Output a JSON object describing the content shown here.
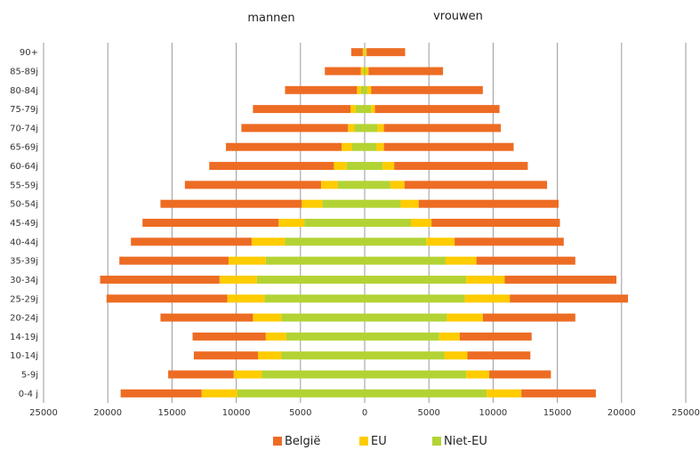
{
  "chart_data": {
    "type": "bar",
    "orientation": "horizontal",
    "stacking": "population-pyramid",
    "labels": {
      "left": "mannen",
      "right": "vrouwen"
    },
    "categories": [
      "90+",
      "85-89j",
      "80-84j",
      "75-79j",
      "70-74j",
      "65-69j",
      "60-64j",
      "55-59j",
      "50-54j",
      "45-49j",
      "40-44j",
      "35-39j",
      "30-34j",
      "25-29j",
      "20-24j",
      "14-19j",
      "10-14j",
      "5-9j",
      "0-4 j"
    ],
    "series": [
      {
        "name": "België",
        "color": "#ED6C24",
        "men": [
          900,
          2800,
          5600,
          7600,
          8300,
          9000,
          9700,
          10600,
          11000,
          10600,
          9400,
          8500,
          9300,
          9400,
          7200,
          5700,
          5000,
          5100,
          6300
        ],
        "women": [
          3000,
          5800,
          8700,
          9700,
          9100,
          10100,
          10400,
          11100,
          10900,
          10000,
          8500,
          7700,
          8700,
          9200,
          7200,
          5600,
          4900,
          4800,
          5800
        ]
      },
      {
        "name": "EU",
        "color": "#FFCC00",
        "men": [
          100,
          200,
          300,
          400,
          500,
          800,
          1000,
          1300,
          1600,
          2000,
          2600,
          2900,
          2900,
          2900,
          2200,
          1600,
          1800,
          2200,
          2800
        ],
        "women": [
          100,
          200,
          300,
          300,
          500,
          600,
          900,
          1100,
          1400,
          1600,
          2200,
          2400,
          3000,
          3500,
          2800,
          1600,
          1800,
          1800,
          2700
        ]
      },
      {
        "name": "Niet-EU",
        "color": "#B3D334",
        "men": [
          50,
          100,
          300,
          700,
          800,
          1000,
          1400,
          2100,
          3300,
          4700,
          6200,
          7700,
          8400,
          7800,
          6500,
          6100,
          6500,
          8000,
          9900
        ],
        "women": [
          50,
          100,
          200,
          500,
          1000,
          900,
          1400,
          2000,
          2800,
          3600,
          4800,
          6300,
          7900,
          7800,
          6400,
          5800,
          6200,
          7900,
          9500
        ]
      }
    ],
    "xaxis": {
      "range": [
        -25000,
        25000
      ],
      "tick_labels": [
        "25000",
        "20000",
        "15000",
        "10000",
        "5000",
        "0",
        "5000",
        "10000",
        "15000",
        "20000",
        "25000"
      ]
    },
    "grid": true,
    "legend_position": "bottom"
  }
}
